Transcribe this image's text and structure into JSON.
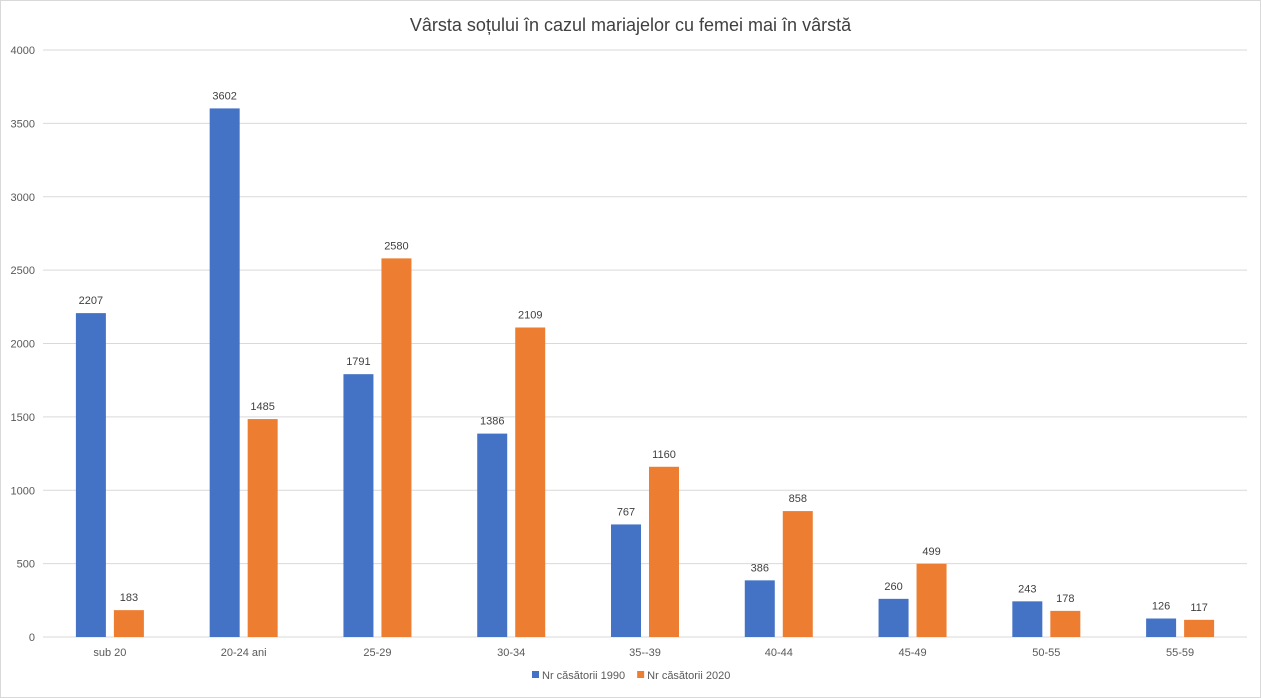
{
  "chart_data": {
    "type": "bar",
    "title": "Vârsta soțului în cazul mariajelor cu femei mai în vârstă",
    "xlabel": "",
    "ylabel": "",
    "categories": [
      "sub 20",
      "20-24 ani",
      "25-29",
      "30-34",
      "35--39",
      "40-44",
      "45-49",
      "50-55",
      "55-59"
    ],
    "series": [
      {
        "name": "Nr căsătorii 1990",
        "color": "#4472c4",
        "values": [
          2207,
          3602,
          1791,
          1386,
          767,
          386,
          260,
          243,
          126
        ]
      },
      {
        "name": "Nr căsătorii 2020",
        "color": "#ed7d31",
        "values": [
          183,
          1485,
          2580,
          2109,
          1160,
          858,
          499,
          178,
          117
        ]
      }
    ],
    "ylim": [
      0,
      4000
    ],
    "yticks": [
      0,
      500,
      1000,
      1500,
      2000,
      2500,
      3000,
      3500,
      4000
    ],
    "grid": true,
    "legend_position": "bottom",
    "data_labels": true
  }
}
